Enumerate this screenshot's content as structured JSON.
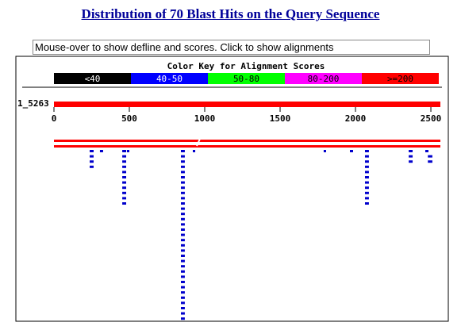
{
  "header": {
    "title": "Distribution of 70 Blast Hits on the Query Sequence"
  },
  "status": "Mouse-over to show defline and scores. Click to show alignments",
  "color_key": {
    "title": "Color Key for Alignment Scores",
    "entries": [
      {
        "label": "<40",
        "color": "#000000",
        "text_color": "#ffffff"
      },
      {
        "label": "40-50",
        "color": "#0000ff",
        "text_color": "#ffffff"
      },
      {
        "label": "50-80",
        "color": "#00ff00",
        "text_color": "#000000"
      },
      {
        "label": "80-200",
        "color": "#ff00ff",
        "text_color": "#000000"
      },
      {
        "label": ">=200",
        "color": "#ff0000",
        "text_color": "#000000"
      }
    ]
  },
  "query": {
    "name": "1_5263",
    "color": "#ff0000"
  },
  "xlim": [
    0,
    2563
  ],
  "xticks": [
    0,
    500,
    1000,
    1500,
    2000,
    2500
  ],
  "hit_color": "#0000cc",
  "hits": [
    {
      "start": 237,
      "end": 263
    },
    {
      "start": 237,
      "end": 263
    },
    {
      "start": 237,
      "end": 263
    },
    {
      "start": 237,
      "end": 263
    },
    {
      "start": 305,
      "end": 326
    },
    {
      "start": 453,
      "end": 479
    },
    {
      "start": 453,
      "end": 479
    },
    {
      "start": 453,
      "end": 479
    },
    {
      "start": 453,
      "end": 479
    },
    {
      "start": 453,
      "end": 479
    },
    {
      "start": 453,
      "end": 479
    },
    {
      "start": 453,
      "end": 479
    },
    {
      "start": 453,
      "end": 479
    },
    {
      "start": 453,
      "end": 479
    },
    {
      "start": 453,
      "end": 479
    },
    {
      "start": 453,
      "end": 479
    },
    {
      "start": 484,
      "end": 500
    },
    {
      "start": 842,
      "end": 868
    },
    {
      "start": 842,
      "end": 868
    },
    {
      "start": 842,
      "end": 868
    },
    {
      "start": 842,
      "end": 868
    },
    {
      "start": 842,
      "end": 868
    },
    {
      "start": 842,
      "end": 868
    },
    {
      "start": 842,
      "end": 868
    },
    {
      "start": 842,
      "end": 868
    },
    {
      "start": 842,
      "end": 868
    },
    {
      "start": 842,
      "end": 868
    },
    {
      "start": 842,
      "end": 868
    },
    {
      "start": 842,
      "end": 868
    },
    {
      "start": 842,
      "end": 868
    },
    {
      "start": 842,
      "end": 868
    },
    {
      "start": 842,
      "end": 868
    },
    {
      "start": 842,
      "end": 868
    },
    {
      "start": 842,
      "end": 868
    },
    {
      "start": 842,
      "end": 868
    },
    {
      "start": 842,
      "end": 868
    },
    {
      "start": 842,
      "end": 868
    },
    {
      "start": 842,
      "end": 868
    },
    {
      "start": 842,
      "end": 868
    },
    {
      "start": 842,
      "end": 868
    },
    {
      "start": 842,
      "end": 868
    },
    {
      "start": 842,
      "end": 868
    },
    {
      "start": 842,
      "end": 868
    },
    {
      "start": 842,
      "end": 868
    },
    {
      "start": 842,
      "end": 868
    },
    {
      "start": 842,
      "end": 868
    },
    {
      "start": 842,
      "end": 868
    },
    {
      "start": 842,
      "end": 868
    },
    {
      "start": 842,
      "end": 868
    },
    {
      "start": 842,
      "end": 868
    },
    {
      "start": 921,
      "end": 937
    },
    {
      "start": 1789,
      "end": 1805
    },
    {
      "start": 1963,
      "end": 1984
    },
    {
      "start": 2063,
      "end": 2089
    },
    {
      "start": 2063,
      "end": 2089
    },
    {
      "start": 2063,
      "end": 2089
    },
    {
      "start": 2063,
      "end": 2089
    },
    {
      "start": 2063,
      "end": 2089
    },
    {
      "start": 2063,
      "end": 2089
    },
    {
      "start": 2063,
      "end": 2089
    },
    {
      "start": 2063,
      "end": 2089
    },
    {
      "start": 2063,
      "end": 2089
    },
    {
      "start": 2063,
      "end": 2089
    },
    {
      "start": 2063,
      "end": 2089
    },
    {
      "start": 2353,
      "end": 2379
    },
    {
      "start": 2353,
      "end": 2379
    },
    {
      "start": 2353,
      "end": 2379
    },
    {
      "start": 2463,
      "end": 2484
    },
    {
      "start": 2480,
      "end": 2510
    },
    {
      "start": 2480,
      "end": 2510
    }
  ]
}
